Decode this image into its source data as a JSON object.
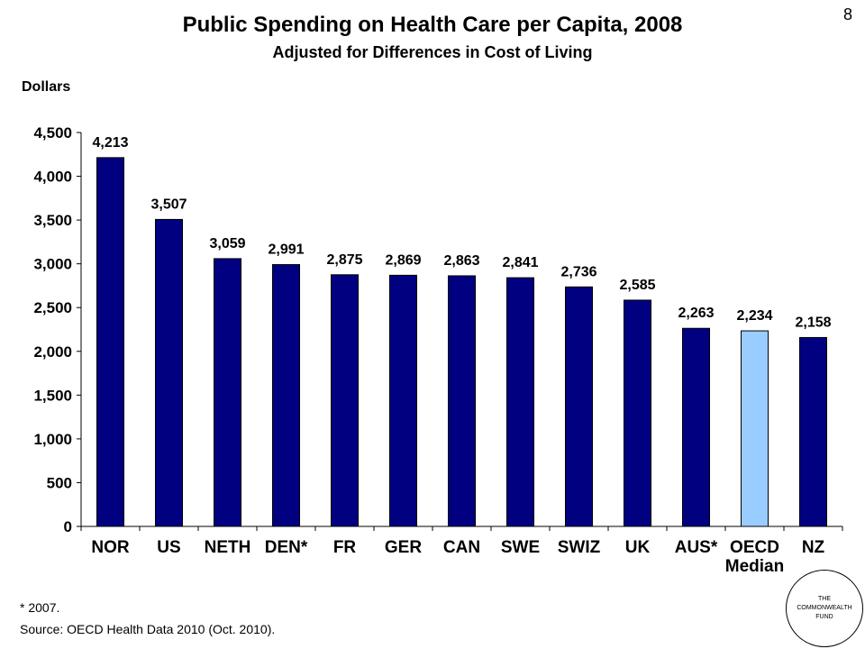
{
  "page_number": "8",
  "footnote": "* 2007.",
  "source": "Source: OECD Health Data 2010 (Oct. 2010).",
  "logo": {
    "line1": "THE",
    "line2": "COMMONWEALTH",
    "line3": "FUND"
  },
  "colors": {
    "bar": "#000080",
    "highlight": "#99CCFF",
    "axis": "#000000"
  },
  "chart_data": {
    "type": "bar",
    "title": "Public Spending on Health Care per Capita, 2008",
    "subtitle": "Adjusted for Differences in Cost of Living",
    "ylabel": "Dollars",
    "xlabel": "",
    "categories": [
      "NOR",
      "US",
      "NETH",
      "DEN*",
      "FR",
      "GER",
      "CAN",
      "SWE",
      "SWIZ",
      "UK",
      "AUS*",
      "OECD Median",
      "NZ"
    ],
    "category_lines": [
      [
        "NOR"
      ],
      [
        "US"
      ],
      [
        "NETH"
      ],
      [
        "DEN*"
      ],
      [
        "FR"
      ],
      [
        "GER"
      ],
      [
        "CAN"
      ],
      [
        "SWE"
      ],
      [
        "SWIZ"
      ],
      [
        "UK"
      ],
      [
        "AUS*"
      ],
      [
        "OECD",
        "Median"
      ],
      [
        "NZ"
      ]
    ],
    "values": [
      4213,
      3507,
      3059,
      2991,
      2875,
      2869,
      2863,
      2841,
      2736,
      2585,
      2263,
      2234,
      2158
    ],
    "value_labels": [
      "4,213",
      "3,507",
      "3,059",
      "2,991",
      "2,875",
      "2,869",
      "2,863",
      "2,841",
      "2,736",
      "2,585",
      "2,263",
      "2,234",
      "2,158"
    ],
    "highlight": "OECD Median",
    "ylim": [
      0,
      4500
    ],
    "yticks": [
      0,
      500,
      1000,
      1500,
      2000,
      2500,
      3000,
      3500,
      4000,
      4500
    ],
    "ytick_labels": [
      "0",
      "500",
      "1,000",
      "1,500",
      "2,000",
      "2,500",
      "3,000",
      "3,500",
      "4,000",
      "4,500"
    ],
    "grid": false,
    "legend": "none"
  }
}
